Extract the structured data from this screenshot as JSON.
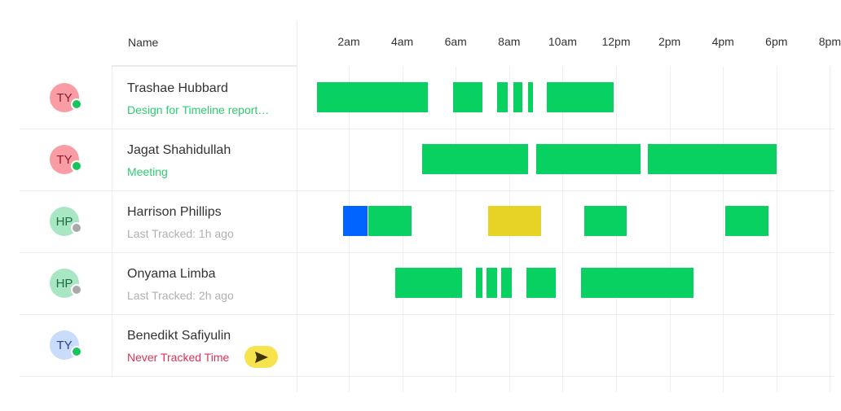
{
  "header": {
    "name_label": "Name",
    "times": [
      "2am",
      "4am",
      "6am",
      "8am",
      "10am",
      "12pm",
      "2pm",
      "4pm",
      "6pm",
      "8pm"
    ]
  },
  "colors": {
    "tracked": "#08d162",
    "blue": "#0062ff",
    "yellow": "#e6d325",
    "online": "#16c65a",
    "offline": "#a9a9a9"
  },
  "rows": [
    {
      "initials": "TY",
      "avatar_bg": "#f99ca4",
      "avatar_fg": "#8a1d2a",
      "presence": "online",
      "name": "Trashae Hubbard",
      "status": "Design for Timeline report…",
      "status_color": "#2ecc71",
      "segments": [
        {
          "start": 0.8,
          "end": 4.95,
          "color": "green"
        },
        {
          "start": 5.9,
          "end": 7.0,
          "color": "green"
        },
        {
          "start": 7.55,
          "end": 7.95,
          "color": "green"
        },
        {
          "start": 8.15,
          "end": 8.5,
          "color": "green"
        },
        {
          "start": 8.7,
          "end": 8.9,
          "color": "green"
        },
        {
          "start": 9.4,
          "end": 11.9,
          "color": "green"
        }
      ]
    },
    {
      "initials": "TY",
      "avatar_bg": "#f99ca4",
      "avatar_fg": "#8a1d2a",
      "presence": "online",
      "name": "Jagat Shahidullah",
      "status": "Meeting",
      "status_color": "#2ecc71",
      "segments": [
        {
          "start": 4.75,
          "end": 8.7,
          "color": "green"
        },
        {
          "start": 9.0,
          "end": 12.9,
          "color": "green"
        },
        {
          "start": 13.2,
          "end": 18.0,
          "color": "green"
        }
      ]
    },
    {
      "initials": "HP",
      "avatar_bg": "#a8e6c4",
      "avatar_fg": "#1d6b41",
      "presence": "offline",
      "name": "Harrison Phillips",
      "status": "Last Tracked: 1h ago",
      "status_color": "#b0b0b0",
      "segments": [
        {
          "start": 1.8,
          "end": 2.7,
          "color": "blue"
        },
        {
          "start": 2.73,
          "end": 4.35,
          "color": "green"
        },
        {
          "start": 7.2,
          "end": 9.2,
          "color": "yellow"
        },
        {
          "start": 10.8,
          "end": 12.4,
          "color": "green"
        },
        {
          "start": 16.1,
          "end": 17.7,
          "color": "green"
        }
      ]
    },
    {
      "initials": "HP",
      "avatar_bg": "#a8e6c4",
      "avatar_fg": "#1d6b41",
      "presence": "offline",
      "name": "Onyama Limba",
      "status": "Last Tracked: 2h ago",
      "status_color": "#b0b0b0",
      "segments": [
        {
          "start": 3.75,
          "end": 6.25,
          "color": "green"
        },
        {
          "start": 6.75,
          "end": 7.0,
          "color": "green"
        },
        {
          "start": 7.15,
          "end": 7.55,
          "color": "green"
        },
        {
          "start": 7.7,
          "end": 8.1,
          "color": "green"
        },
        {
          "start": 8.65,
          "end": 9.75,
          "color": "green"
        },
        {
          "start": 10.7,
          "end": 14.9,
          "color": "green"
        }
      ]
    },
    {
      "initials": "TY",
      "avatar_bg": "#c9dcfb",
      "avatar_fg": "#23448a",
      "presence": "online",
      "name": "Benedikt Safiyulin",
      "status": "Never Tracked Time",
      "status_color": "#e0325a",
      "send_icon": "send-icon",
      "segments": []
    }
  ]
}
